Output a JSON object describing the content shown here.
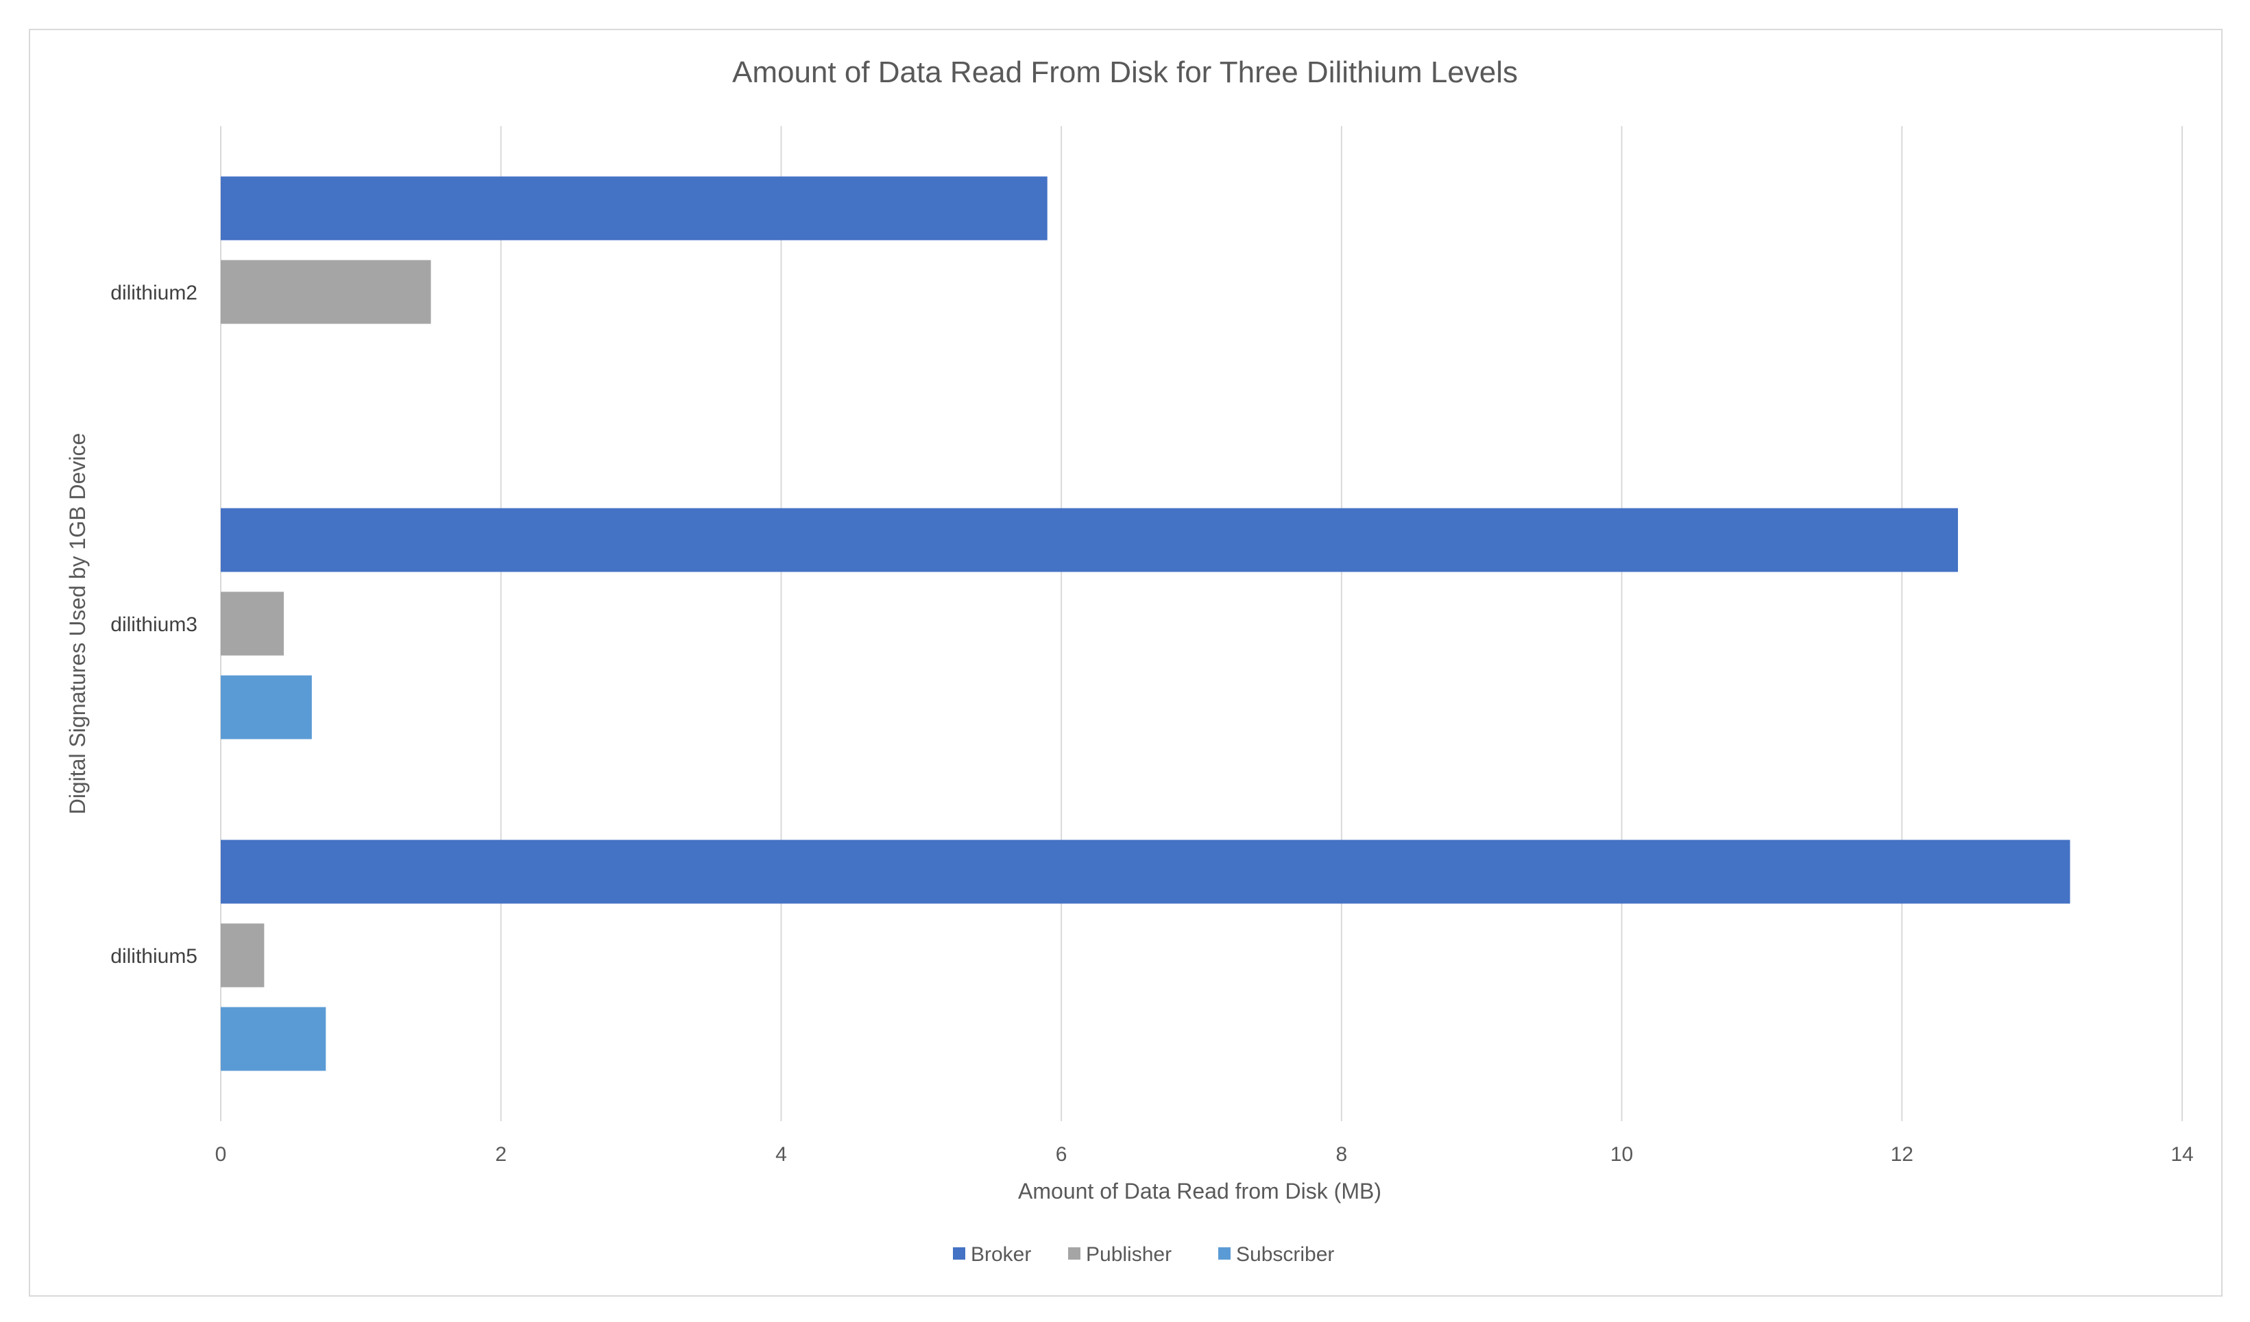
{
  "chart_data": {
    "type": "bar",
    "orientation": "horizontal",
    "title": "Amount of Data Read From Disk for Three Dilithium Levels",
    "xlabel": "Amount of Data Read from Disk (MB)",
    "ylabel": "Digital Signatures Used by 1GB Device",
    "categories": [
      "dilithium2",
      "dilithium3",
      "dilithium5"
    ],
    "series": [
      {
        "name": "Broker",
        "color": "#4472c4",
        "values": [
          5.9,
          12.4,
          13.2
        ]
      },
      {
        "name": "Publisher",
        "color": "#a5a5a5",
        "values": [
          1.5,
          0.45,
          0.31
        ]
      },
      {
        "name": "Subscriber",
        "color": "#5b9bd5",
        "values": [
          null,
          0.65,
          0.75
        ]
      }
    ],
    "xlim": [
      0,
      14
    ],
    "xticks": [
      "0",
      "2",
      "4",
      "6",
      "8",
      "10",
      "12",
      "14"
    ],
    "grid": "vertical",
    "legend_position": "bottom"
  }
}
